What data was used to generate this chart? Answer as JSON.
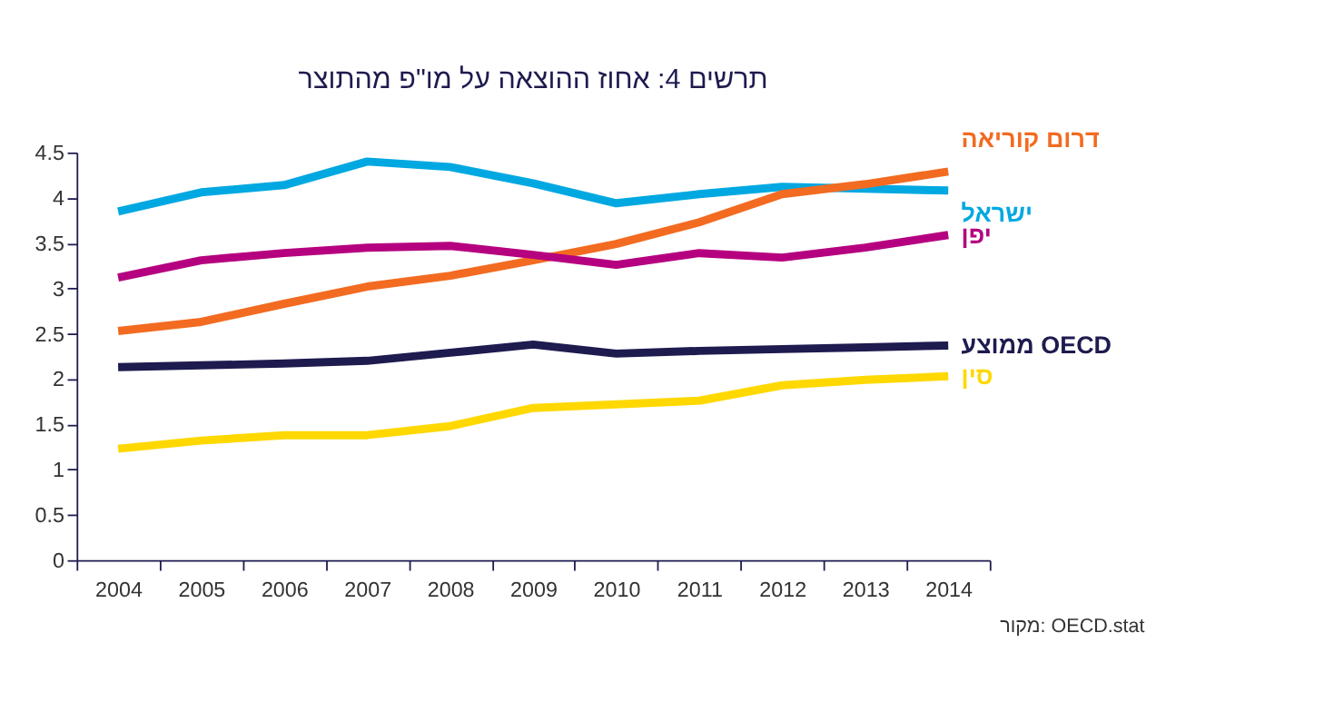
{
  "chart_data": {
    "type": "line",
    "title": "תרשים 4: אחוז ההוצאה על מו\"פ מהתוצר",
    "categories": [
      "2004",
      "2005",
      "2006",
      "2007",
      "2008",
      "2009",
      "2010",
      "2011",
      "2012",
      "2013",
      "2014"
    ],
    "series": [
      {
        "name": "ישראל",
        "color": "#00a8e1",
        "values": [
          3.85,
          4.06,
          4.14,
          4.4,
          4.34,
          4.16,
          3.94,
          4.04,
          4.12,
          4.1,
          4.08
        ]
      },
      {
        "name": "דרום קוריאה",
        "color": "#f26b21",
        "values": [
          2.53,
          2.63,
          2.83,
          3.02,
          3.14,
          3.31,
          3.49,
          3.73,
          4.04,
          4.15,
          4.29
        ]
      },
      {
        "name": "יפן",
        "color": "#b5007f",
        "values": [
          3.12,
          3.31,
          3.39,
          3.45,
          3.47,
          3.37,
          3.26,
          3.39,
          3.34,
          3.45,
          3.59
        ]
      },
      {
        "name": "ממוצע OECD",
        "color": "#1e1b4f",
        "values": [
          2.13,
          2.15,
          2.17,
          2.2,
          2.29,
          2.38,
          2.28,
          2.31,
          2.33,
          2.35,
          2.37
        ]
      },
      {
        "name": "סין",
        "color": "#ffd800",
        "values": [
          1.23,
          1.32,
          1.38,
          1.38,
          1.48,
          1.68,
          1.72,
          1.76,
          1.93,
          1.99,
          2.03
        ]
      }
    ],
    "ylim": [
      0,
      4.5
    ],
    "yticks": [
      0,
      0.5,
      1,
      1.5,
      2,
      2.5,
      3,
      3.5,
      4,
      4.5
    ],
    "grid": false,
    "legend": false,
    "marker": "none",
    "line_style": "solid",
    "annotations": [
      "מקור: OECD.stat"
    ]
  }
}
